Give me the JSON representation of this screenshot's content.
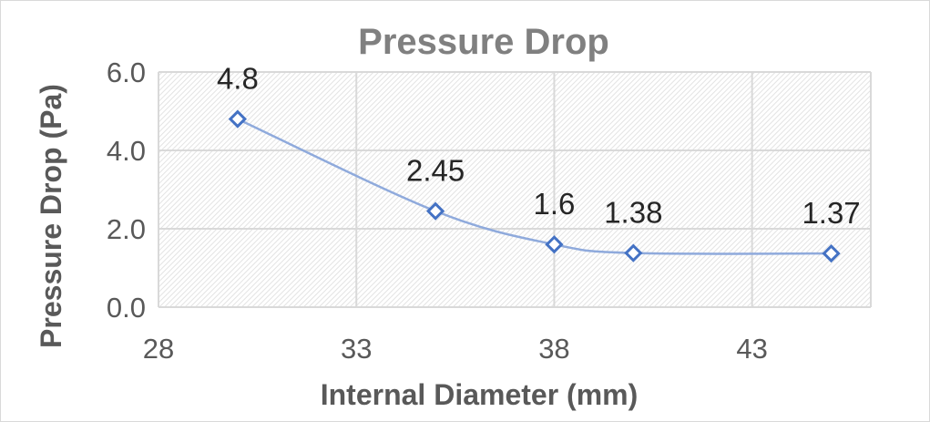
{
  "chart_data": {
    "type": "scatter",
    "title": "Pressure Drop",
    "xlabel": "Internal Diameter (mm)",
    "ylabel": "Pressure Drop (Pa)",
    "xlim": [
      28,
      46
    ],
    "ylim": [
      0,
      6
    ],
    "x_ticks": [
      "28",
      "33",
      "38",
      "43"
    ],
    "y_ticks": [
      "0.0",
      "2.0",
      "4.0",
      "6.0"
    ],
    "grid": true,
    "legend": "none",
    "series": [
      {
        "x": [
          30,
          35,
          38,
          40,
          45
        ],
        "y": [
          4.8,
          2.45,
          1.6,
          1.38,
          1.37
        ],
        "labels": [
          "4.8",
          "2.45",
          "1.6",
          "1.38",
          "1.37"
        ],
        "color": "#4472c4",
        "line_color": "#8faadc",
        "marker": "diamond-open",
        "smooth": true
      }
    ]
  }
}
